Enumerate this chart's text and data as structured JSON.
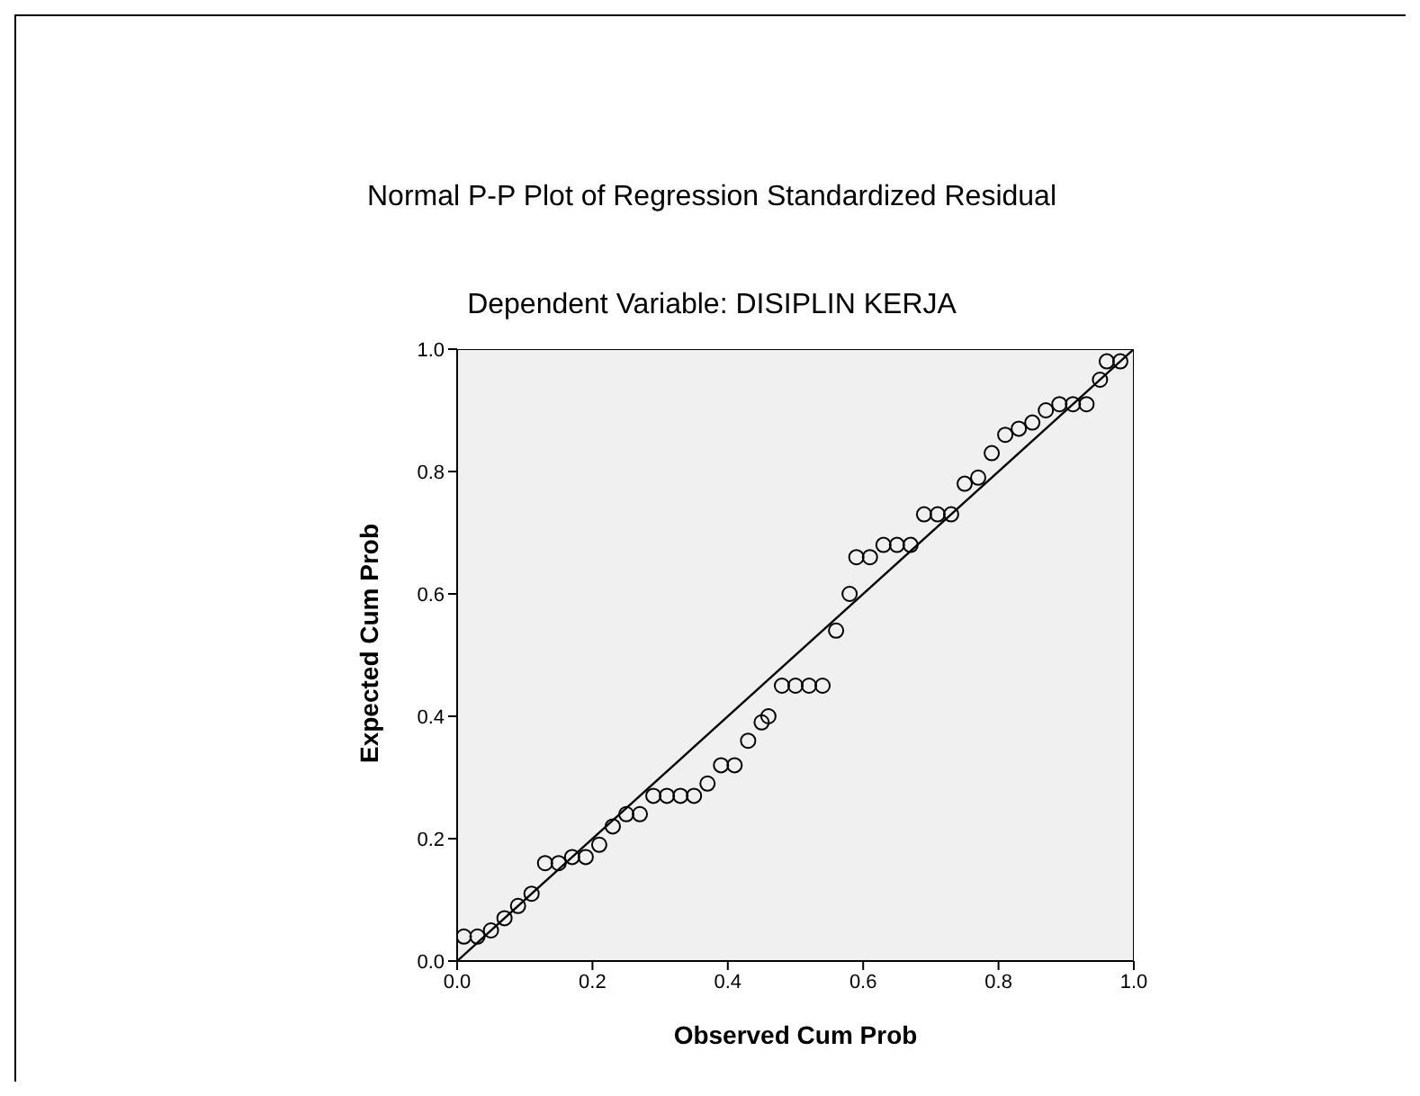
{
  "chart_data": {
    "type": "scatter",
    "title": "Normal P-P Plot of Regression Standardized Residual",
    "subtitle": "Dependent Variable: DISIPLIN KERJA",
    "xlabel": "Observed Cum Prob",
    "ylabel": "Expected Cum Prob",
    "xlim": [
      0,
      1
    ],
    "ylim": [
      0,
      1
    ],
    "xticks": [
      {
        "value": 0,
        "label": "0.0"
      },
      0.2,
      0.4,
      0.6,
      0.8,
      {
        "value": 1,
        "label": "1.0"
      }
    ],
    "yticks": [
      {
        "value": 0,
        "label": "0.0"
      },
      0.2,
      0.4,
      0.6,
      0.8,
      {
        "value": 1,
        "label": "1.0"
      }
    ],
    "grid": false,
    "legend": false,
    "marker": "circle",
    "series": [
      {
        "type": "scatter",
        "color": "#000000",
        "x": [
          0.01,
          0.03,
          0.05,
          0.07,
          0.09,
          0.11,
          0.13,
          0.15,
          0.17,
          0.19,
          0.21,
          0.23,
          0.25,
          0.27,
          0.29,
          0.31,
          0.33,
          0.35,
          0.37,
          0.39,
          0.41,
          0.43,
          0.45,
          0.46,
          0.48,
          0.5,
          0.52,
          0.54,
          0.56,
          0.58,
          0.59,
          0.61,
          0.63,
          0.65,
          0.67,
          0.69,
          0.71,
          0.73,
          0.75,
          0.77,
          0.79,
          0.81,
          0.83,
          0.85,
          0.87,
          0.89,
          0.91,
          0.93,
          0.95,
          0.96,
          0.98
        ],
        "values": [
          0.04,
          0.04,
          0.05,
          0.07,
          0.09,
          0.11,
          0.16,
          0.16,
          0.17,
          0.17,
          0.19,
          0.22,
          0.24,
          0.24,
          0.27,
          0.27,
          0.27,
          0.27,
          0.29,
          0.32,
          0.32,
          0.36,
          0.39,
          0.4,
          0.45,
          0.45,
          0.45,
          0.45,
          0.54,
          0.6,
          0.66,
          0.66,
          0.68,
          0.68,
          0.68,
          0.73,
          0.73,
          0.73,
          0.78,
          0.79,
          0.83,
          0.86,
          0.87,
          0.88,
          0.9,
          0.91,
          0.91,
          0.91,
          0.95,
          0.98,
          0.98
        ]
      },
      {
        "type": "line",
        "color": "#000000",
        "x": [
          0,
          1
        ],
        "values": [
          0,
          1
        ],
        "marker": "none",
        "line_style": "solid"
      }
    ]
  }
}
